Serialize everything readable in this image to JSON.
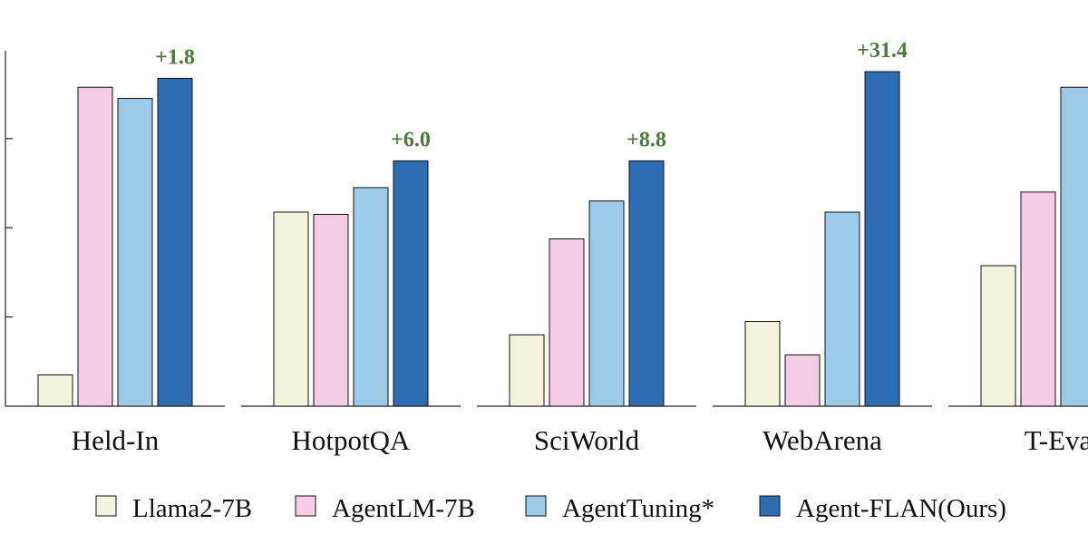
{
  "chart_data": {
    "type": "bar",
    "title": "",
    "xlabel": "",
    "ylabel": "",
    "ylim": [
      0,
      8
    ],
    "yticks": [
      2,
      4,
      6
    ],
    "grid": false,
    "legend_position": "bottom",
    "categories": [
      "Held-In",
      "HotpotQA",
      "SciWorld",
      "WebArena",
      "T-Eva"
    ],
    "series": [
      {
        "name": "Llama2-7B",
        "color": "#f4f4dc",
        "values": [
          0.7,
          4.35,
          1.6,
          1.9,
          3.15
        ]
      },
      {
        "name": "AgentLM-7B",
        "color": "#f4cce4",
        "values": [
          7.15,
          4.3,
          3.75,
          1.15,
          4.8
        ]
      },
      {
        "name": "AgentTuning*",
        "color": "#9ccbea",
        "values": [
          6.9,
          4.9,
          4.6,
          4.35,
          7.15
        ]
      },
      {
        "name": "Agent-FLAN(Ours)",
        "color": "#2f6db3",
        "values": [
          7.35,
          5.5,
          5.5,
          7.5,
          null
        ]
      }
    ],
    "annotations": [
      "+1.8",
      "+6.0",
      "+8.8",
      "+31.4",
      ""
    ],
    "annotation_color": "#4a7a3c"
  }
}
